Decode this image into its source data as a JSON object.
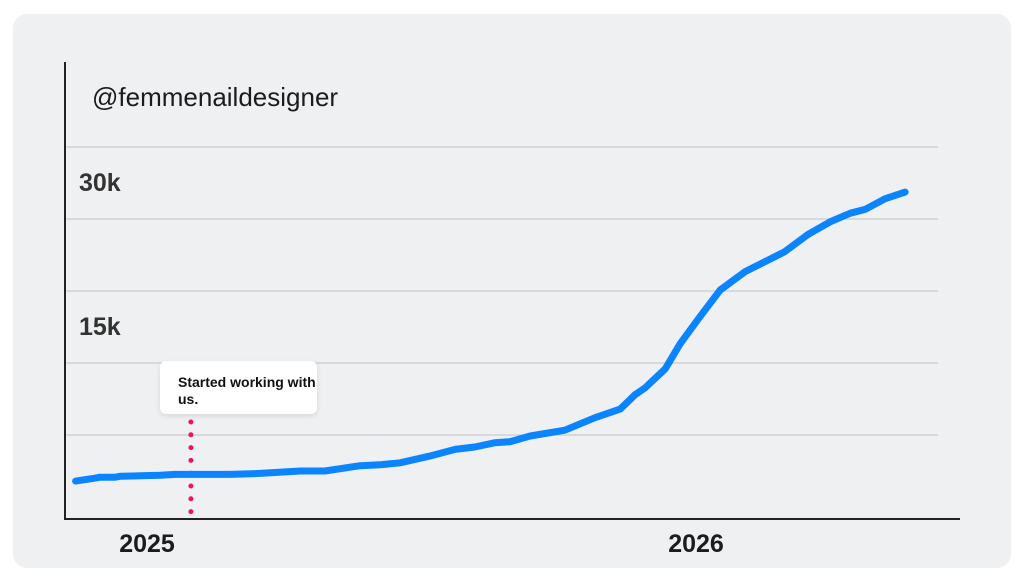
{
  "chart_data": {
    "type": "line",
    "title": "@femmenaildesigner",
    "xlabel": "",
    "ylabel": "",
    "x_ticks": [
      {
        "value": 2025,
        "label": "2025"
      },
      {
        "value": 2026,
        "label": "2026"
      }
    ],
    "y_ticks": [
      {
        "value": 15000,
        "label": "15k"
      },
      {
        "value": 30000,
        "label": "30k"
      }
    ],
    "gridlines_y": [
      7500,
      15000,
      22500,
      30000,
      37500
    ],
    "grid": true,
    "ylim": [
      -1250,
      37500
    ],
    "xlim": [
      2024.85,
      2026.45
    ],
    "series": [
      {
        "color": "#0a84ff",
        "x": [
          2024.87,
          2024.905,
          2024.914,
          2024.942,
          2024.951,
          2025.024,
          2025.051,
          2025.151,
          2025.206,
          2025.279,
          2025.324,
          2025.388,
          2025.424,
          2025.461,
          2025.515,
          2025.561,
          2025.597,
          2025.634,
          2025.661,
          2025.698,
          2025.761,
          2025.816,
          2025.862,
          2025.889,
          2025.907,
          2025.944,
          2025.971,
          2026.007,
          2026.044,
          2026.089,
          2026.162,
          2026.204,
          2026.244,
          2026.281,
          2026.308,
          2026.344,
          2026.381
        ],
        "y": [
          2700,
          3000,
          3100,
          3100,
          3200,
          3300,
          3400,
          3400,
          3500,
          3750,
          3750,
          4300,
          4400,
          4600,
          5300,
          6000,
          6250,
          6700,
          6800,
          7400,
          8000,
          9300,
          10200,
          11700,
          12400,
          14400,
          17000,
          19800,
          22600,
          24500,
          26600,
          28400,
          29700,
          30600,
          31000,
          32100,
          32800
        ]
      }
    ],
    "annotations": [
      {
        "x": 2025.08,
        "text": "Started working with us.",
        "line_color": "#f0145a"
      }
    ]
  }
}
